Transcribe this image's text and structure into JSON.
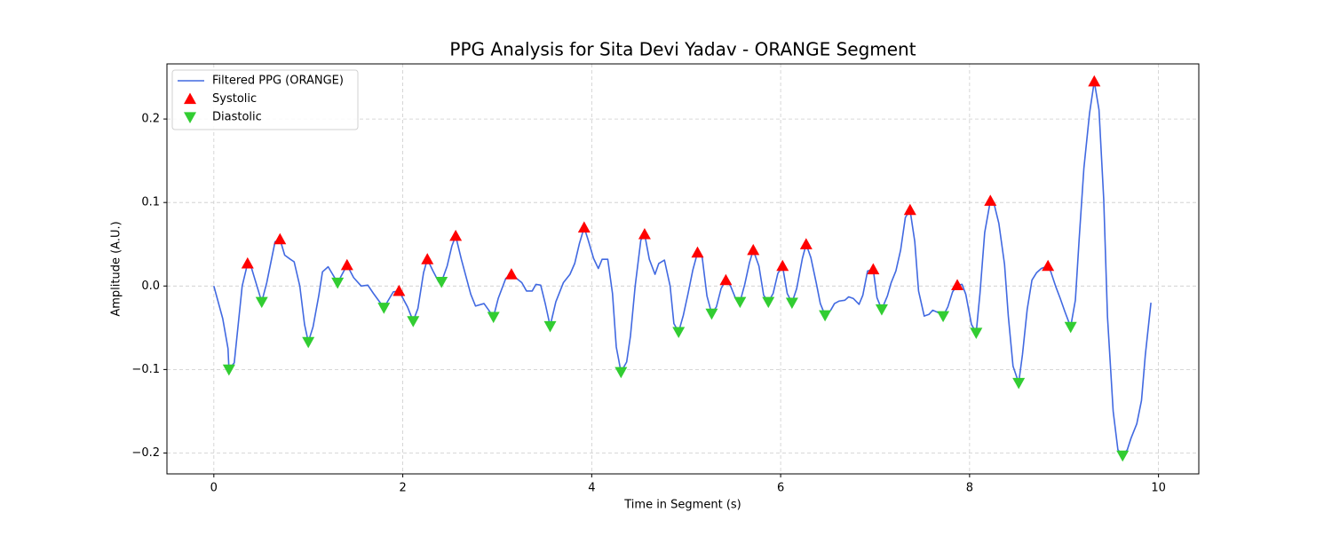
{
  "chart_data": {
    "type": "line",
    "title": "PPG Analysis for Sita Devi Yadav - ORANGE Segment",
    "x_label": "Time in Segment (s)",
    "y_label": "Amplitude (A.U.)",
    "xlim": [
      -0.4965,
      10.4265
    ],
    "ylim": [
      -0.225,
      0.266
    ],
    "xticks": [
      0,
      2,
      4,
      6,
      8,
      10
    ],
    "yticks": [
      {
        "value": -0.2,
        "label": "−0.2"
      },
      {
        "value": -0.1,
        "label": "−0.1"
      },
      {
        "value": 0,
        "label": "0.0"
      },
      0.1,
      0.2
    ],
    "grid": true,
    "legend_position": "upper-left",
    "series": [
      {
        "name": "Filtered PPG (ORANGE)",
        "color": "#4169e1",
        "mark": "line",
        "x": [
          0,
          0.094,
          0.15,
          0.16,
          0.216,
          0.3,
          0.357,
          0.4,
          0.507,
          0.56,
          0.648,
          0.7,
          0.75,
          0.81,
          0.85,
          0.91,
          0.96,
          1.0,
          1.05,
          1.11,
          1.15,
          1.21,
          1.31,
          1.41,
          1.48,
          1.56,
          1.63,
          1.69,
          1.8,
          1.9,
          1.96,
          2.05,
          2.11,
          2.16,
          2.22,
          2.26,
          2.32,
          2.38,
          2.41,
          2.47,
          2.52,
          2.56,
          2.62,
          2.72,
          2.77,
          2.86,
          2.96,
          3.01,
          3.09,
          3.15,
          3.26,
          3.31,
          3.37,
          3.41,
          3.46,
          3.51,
          3.56,
          3.62,
          3.7,
          3.77,
          3.82,
          3.87,
          3.92,
          3.96,
          4.02,
          4.07,
          4.11,
          4.17,
          4.22,
          4.26,
          4.31,
          4.37,
          4.41,
          4.46,
          4.52,
          4.56,
          4.61,
          4.67,
          4.71,
          4.77,
          4.83,
          4.87,
          4.92,
          4.97,
          5.02,
          5.07,
          5.12,
          5.17,
          5.22,
          5.27,
          5.32,
          5.37,
          5.42,
          5.47,
          5.52,
          5.57,
          5.62,
          5.67,
          5.71,
          5.77,
          5.82,
          5.87,
          5.92,
          5.97,
          6.02,
          6.07,
          6.12,
          6.17,
          6.23,
          6.27,
          6.32,
          6.38,
          6.42,
          6.47,
          6.53,
          6.57,
          6.62,
          6.68,
          6.72,
          6.77,
          6.83,
          6.87,
          6.92,
          6.98,
          7.02,
          7.07,
          7.13,
          7.17,
          7.22,
          7.27,
          7.32,
          7.37,
          7.42,
          7.46,
          7.52,
          7.57,
          7.61,
          7.67,
          7.72,
          7.77,
          7.82,
          7.87,
          7.92,
          7.96,
          8.02,
          8.07,
          8.11,
          8.16,
          8.22,
          8.26,
          8.31,
          8.37,
          8.41,
          8.46,
          8.52,
          8.56,
          8.61,
          8.66,
          8.71,
          8.76,
          8.83,
          8.86,
          8.91,
          8.96,
          9.01,
          9.07,
          9.12,
          9.16,
          9.21,
          9.27,
          9.32,
          9.37,
          9.42,
          9.46,
          9.52,
          9.57,
          9.62,
          9.67,
          9.71,
          9.77,
          9.82,
          9.86,
          9.92
        ],
        "values": [
          0,
          -0.039,
          -0.075,
          -0.1,
          -0.092,
          0,
          0.027,
          0.021,
          -0.019,
          0.004,
          0.053,
          0.056,
          0.037,
          0.032,
          0.029,
          0,
          -0.046,
          -0.067,
          -0.049,
          -0.012,
          0.017,
          0.023,
          0.004,
          0.025,
          0.01,
          0,
          0.001,
          -0.009,
          -0.026,
          -0.007,
          -0.006,
          -0.025,
          -0.042,
          -0.027,
          0.016,
          0.032,
          0.018,
          0.005,
          0.005,
          0.024,
          0.048,
          0.06,
          0.032,
          -0.01,
          -0.024,
          -0.021,
          -0.037,
          -0.015,
          0.009,
          0.014,
          0.004,
          -0.006,
          -0.006,
          0.002,
          0.001,
          -0.022,
          -0.048,
          -0.019,
          0.004,
          0.014,
          0.027,
          0.051,
          0.07,
          0.056,
          0.033,
          0.021,
          0.032,
          0.032,
          -0.009,
          -0.073,
          -0.103,
          -0.091,
          -0.06,
          0,
          0.055,
          0.062,
          0.032,
          0.014,
          0.027,
          0.031,
          0,
          -0.045,
          -0.055,
          -0.035,
          -0.009,
          0.019,
          0.04,
          0.034,
          -0.012,
          -0.033,
          -0.025,
          -0.003,
          0.007,
          0,
          -0.014,
          -0.019,
          0.002,
          0.028,
          0.043,
          0.024,
          -0.011,
          -0.019,
          -0.009,
          0.015,
          0.024,
          -0.009,
          -0.02,
          -0.003,
          0.033,
          0.05,
          0.034,
          0.002,
          -0.021,
          -0.035,
          -0.029,
          -0.021,
          -0.018,
          -0.017,
          -0.013,
          -0.015,
          -0.022,
          -0.011,
          0.018,
          0.02,
          -0.014,
          -0.028,
          -0.012,
          0.004,
          0.018,
          0.043,
          0.082,
          0.091,
          0.053,
          -0.006,
          -0.036,
          -0.034,
          -0.029,
          -0.032,
          -0.036,
          -0.025,
          -0.007,
          0.001,
          0.002,
          -0.01,
          -0.046,
          -0.056,
          -0.009,
          0.064,
          0.102,
          0.098,
          0.075,
          0.026,
          -0.036,
          -0.096,
          -0.116,
          -0.082,
          -0.028,
          0.007,
          0.016,
          0.021,
          0.024,
          0.017,
          0,
          -0.015,
          -0.031,
          -0.049,
          -0.017,
          0.056,
          0.141,
          0.207,
          0.245,
          0.211,
          0.104,
          -0.037,
          -0.15,
          -0.196,
          -0.203,
          -0.196,
          -0.182,
          -0.165,
          -0.137,
          -0.083,
          -0.02
        ]
      },
      {
        "name": "Systolic",
        "color": "#ff0000",
        "mark": "triangle-up",
        "x": [
          0.357,
          0.7,
          1.41,
          1.96,
          2.26,
          2.56,
          3.15,
          3.92,
          4.56,
          5.12,
          5.42,
          5.71,
          6.02,
          6.27,
          6.98,
          7.37,
          7.87,
          8.22,
          8.83,
          9.32
        ],
        "values": [
          0.027,
          0.056,
          0.025,
          -0.006,
          0.032,
          0.06,
          0.014,
          0.07,
          0.062,
          0.04,
          0.007,
          0.043,
          0.024,
          0.05,
          0.02,
          0.091,
          0.001,
          0.102,
          0.024,
          0.245
        ]
      },
      {
        "name": "Diastolic",
        "color": "#32cd32",
        "mark": "triangle-down",
        "x": [
          0.16,
          0.507,
          1.0,
          1.31,
          1.8,
          2.11,
          2.41,
          2.96,
          3.56,
          4.31,
          4.92,
          5.27,
          5.57,
          5.87,
          6.12,
          6.47,
          7.07,
          7.72,
          8.07,
          8.52,
          9.07,
          9.62
        ],
        "values": [
          -0.1,
          -0.019,
          -0.067,
          0.004,
          -0.026,
          -0.042,
          0.005,
          -0.037,
          -0.048,
          -0.103,
          -0.055,
          -0.033,
          -0.019,
          -0.019,
          -0.02,
          -0.035,
          -0.028,
          -0.036,
          -0.056,
          -0.116,
          -0.049,
          -0.203
        ]
      }
    ]
  }
}
